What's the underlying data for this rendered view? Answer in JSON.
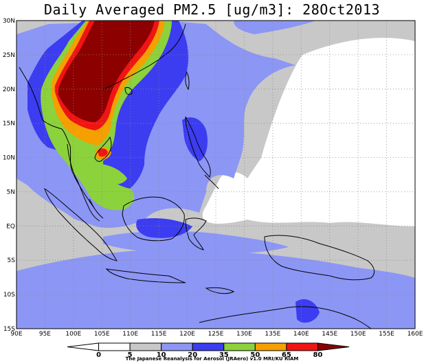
{
  "title": "Daily Averaged PM2.5 [ug/m3]: 28Oct2013",
  "footer": "The Japanese Reanalysis for Aerosol (JRAero) v1.0 MRI/KU RIAM",
  "map": {
    "lon_range": [
      90,
      160
    ],
    "lat_range": [
      -15,
      30
    ],
    "lon_ticks": [
      "90E",
      "95E",
      "100E",
      "105E",
      "110E",
      "115E",
      "120E",
      "125E",
      "130E",
      "135E",
      "140E",
      "145E",
      "150E",
      "155E",
      "160E"
    ],
    "lat_ticks": [
      "15S",
      "10S",
      "5S",
      "EQ",
      "5N",
      "10N",
      "15N",
      "20N",
      "25N",
      "30N"
    ],
    "grid": "dotted"
  },
  "colorbar": {
    "levels": [
      "0",
      "5",
      "10",
      "20",
      "35",
      "50",
      "65",
      "80"
    ],
    "colors": [
      "#ffffff",
      "#ffffff",
      "#c8c8c8",
      "#8c96f5",
      "#3c3cf0",
      "#8cd23c",
      "#f5a000",
      "#f01414",
      "#8c0000"
    ]
  }
}
